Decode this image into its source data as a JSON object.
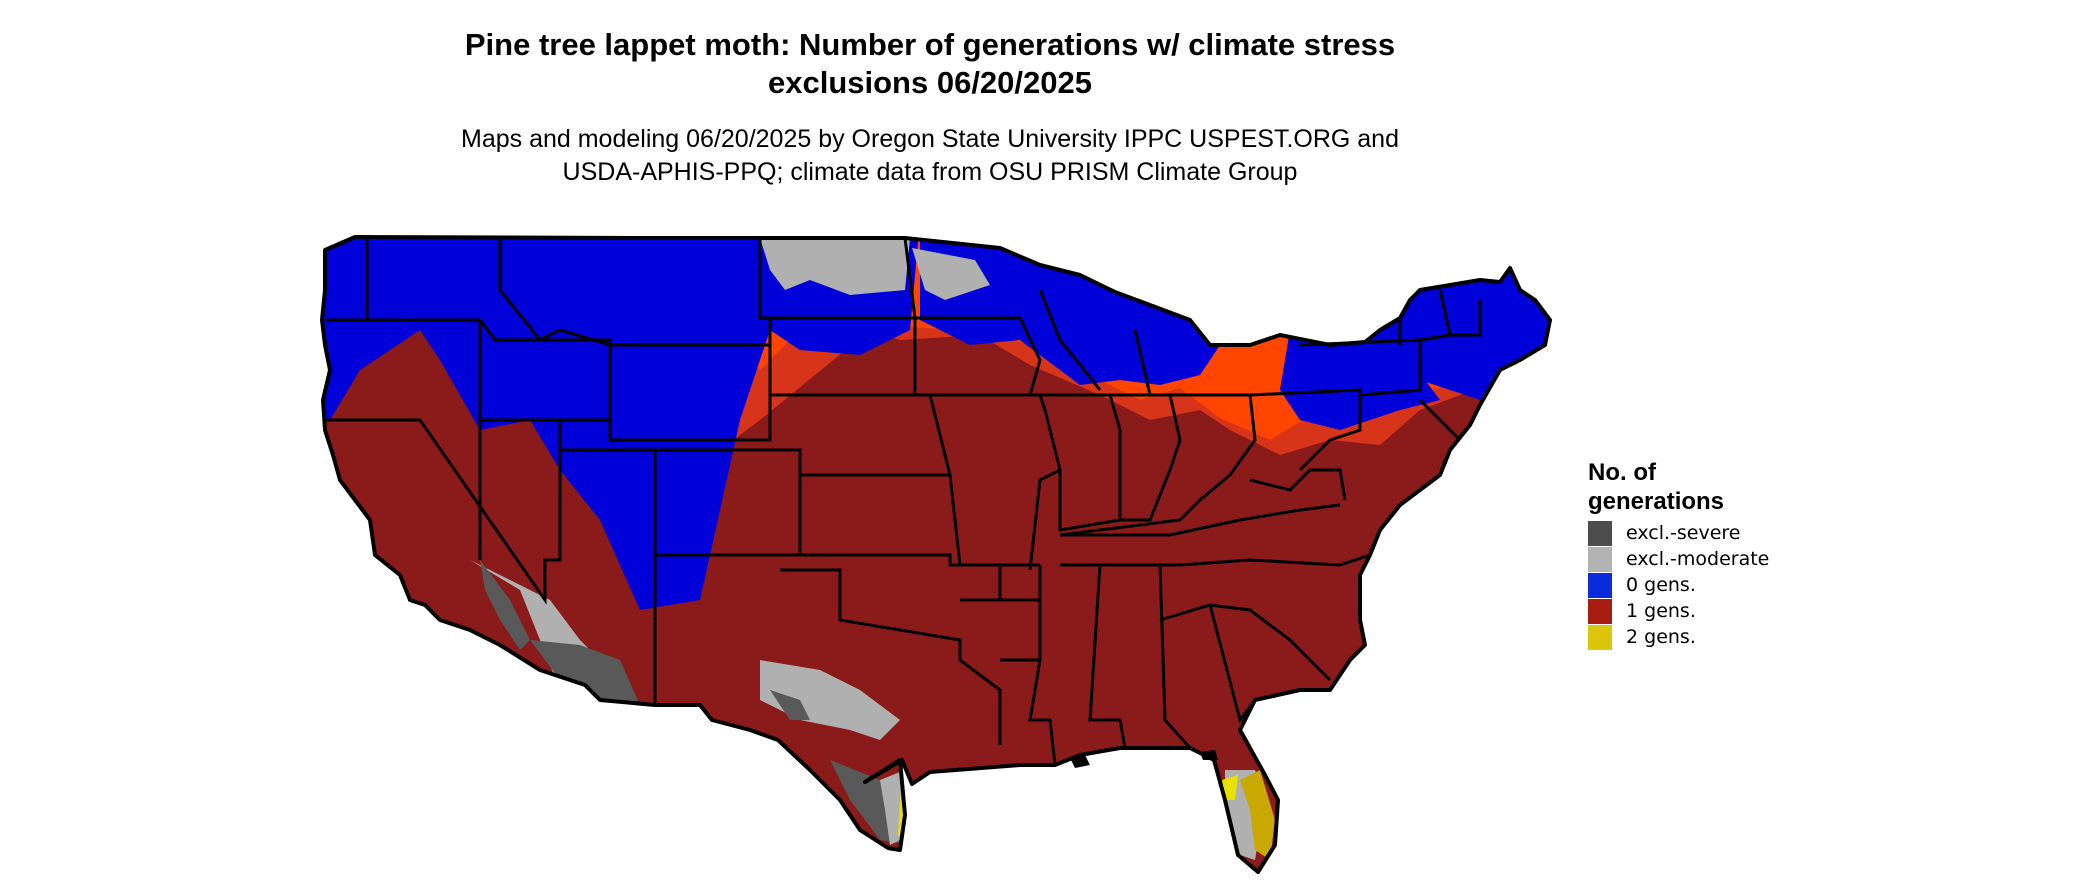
{
  "title_line1": "Pine tree lappet moth: Number of generations w/ climate stress",
  "title_line2": "exclusions 06/20/2025",
  "subtitle_line1": "Maps and modeling 06/20/2025 by Oregon State University IPPC USPEST.ORG and",
  "subtitle_line2": "USDA-APHIS-PPQ; climate data from OSU PRISM Climate Group",
  "legend": {
    "title_line1": "No. of",
    "title_line2": "generations",
    "items": [
      {
        "label": "excl.-severe",
        "color": "#4d4d4d"
      },
      {
        "label": "excl.-moderate",
        "color": "#b3b3b3"
      },
      {
        "label": "0 gens.",
        "color": "#0a2bd9"
      },
      {
        "label": "1 gens.",
        "color": "#a81d12"
      },
      {
        "label": "2 gens.",
        "color": "#ddc50a"
      }
    ]
  },
  "map_colors": {
    "zero_gens": "#0000d8",
    "one_gen": "#8b1a1a",
    "transition": "#ff4500",
    "transition_mid": "#d8341a",
    "excl_severe": "#595959",
    "excl_moderate": "#b0b0b0",
    "two_gens": "#e8e000",
    "two_gens_dark": "#c9a800",
    "border": "#000000"
  }
}
